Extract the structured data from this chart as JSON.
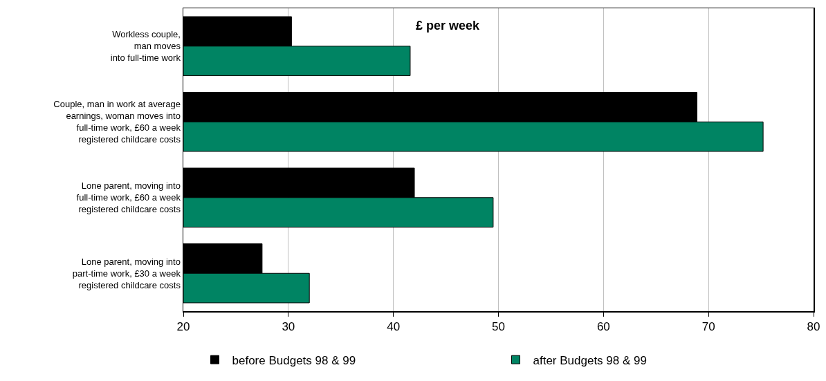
{
  "chart_data": {
    "type": "bar",
    "orientation": "horizontal",
    "categories": [
      "Workless couple,\nman moves\ninto full-time work",
      "Couple, man in work at average\nearnings, woman moves into\nfull-time work, £60 a week\nregistered childcare costs",
      "Lone parent, moving into\nfull-time work, £60 a week\nregistered childcare costs",
      "Lone parent, moving into\npart-time work, £30 a week\nregistered childcare costs"
    ],
    "series": [
      {
        "name": "before Budgets 98 & 99",
        "color": "#000000",
        "values": [
          30.3,
          68.9,
          42.0,
          27.5
        ]
      },
      {
        "name": "after Budgets 98 & 99",
        "color": "#008463",
        "values": [
          41.6,
          75.2,
          49.5,
          32.0
        ]
      }
    ],
    "xlim": [
      20,
      80
    ],
    "xticks": [
      20,
      30,
      40,
      50,
      60,
      70,
      80
    ],
    "annotations": [
      "£ per week"
    ],
    "grid": "x",
    "legend": "bottom"
  }
}
